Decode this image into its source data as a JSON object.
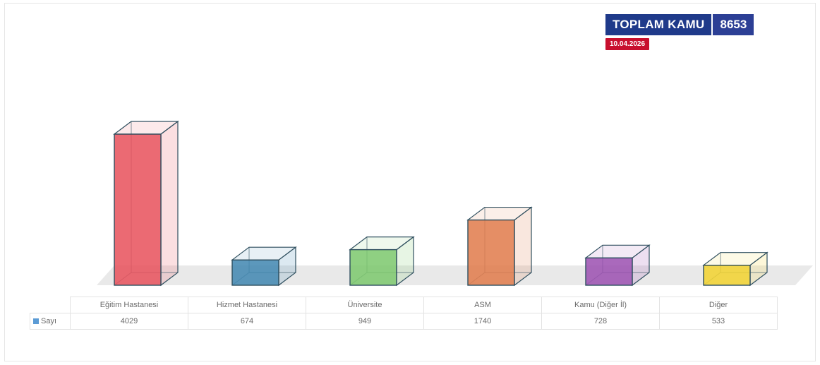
{
  "header": {
    "total_label": "TOPLAM KAMU",
    "total_value": "8653",
    "date": "10.04.2026"
  },
  "chart_data": {
    "type": "bar",
    "categories": [
      "Eğitim Hastanesi",
      "Hizmet Hastanesi",
      "Üniversite",
      "ASM",
      "Kamu (Diğer İl)",
      "Diğer"
    ],
    "series": [
      {
        "name": "Sayı",
        "values": [
          4029,
          674,
          949,
          1740,
          728,
          533
        ]
      }
    ],
    "colors": [
      "#e8505b",
      "#3f86b0",
      "#7bc86c",
      "#e07a4a",
      "#9b4fb0",
      "#f2d22e"
    ],
    "legend": "table-left",
    "grid": false
  },
  "table": {
    "row_label": "Sayı",
    "values": [
      "4029",
      "674",
      "949",
      "1740",
      "728",
      "533"
    ]
  }
}
